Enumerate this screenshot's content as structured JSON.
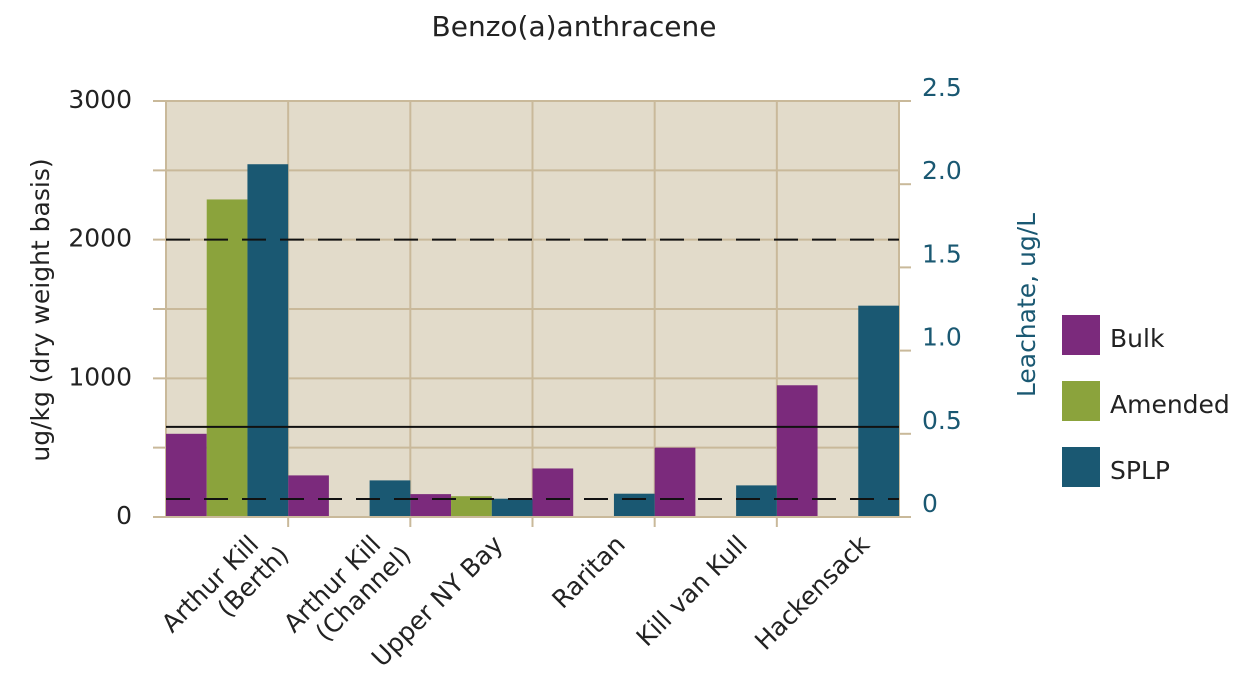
{
  "chart_data": {
    "type": "bar",
    "title": "Benzo(a)anthracene",
    "categories": [
      "Arthur Kill (Berth)",
      "Arthur Kill (Channel)",
      "Upper NY Bay",
      "Raritan",
      "Kill van Kull",
      "Hackensack"
    ],
    "series": [
      {
        "name": "Bulk",
        "color": "#7b2a7c",
        "values": [
          600,
          300,
          165,
          350,
          500,
          950
        ]
      },
      {
        "name": "Amended",
        "color": "#8ba33c",
        "values": [
          2290,
          null,
          150,
          null,
          null,
          null
        ]
      },
      {
        "name": "SPLP",
        "color": "#1a5872",
        "axis": "y2",
        "values": [
          2.12,
          0.22,
          0.11,
          0.14,
          0.19,
          1.27
        ]
      }
    ],
    "y_label": "ug/kg (dry weight basis)",
    "y2_label": "Leachate, ug/L",
    "ylim": [
      0,
      3000
    ],
    "yticks": [
      0,
      1000,
      2000,
      3000
    ],
    "ygrid": [
      0,
      500,
      1000,
      1500,
      2000,
      2500,
      3000
    ],
    "y2lim": [
      0,
      2.5
    ],
    "y2ticks": [
      0,
      0.5,
      {
        "value": 1,
        "label": "1.0"
      },
      1.5,
      {
        "value": 2,
        "label": "2.0"
      },
      2.5
    ],
    "reference_lines": [
      {
        "value": 2000,
        "style": "dashed"
      },
      {
        "value": 650,
        "style": "solid"
      },
      {
        "value": 130,
        "style": "dashed"
      }
    ],
    "grid": true,
    "legend": "right"
  }
}
